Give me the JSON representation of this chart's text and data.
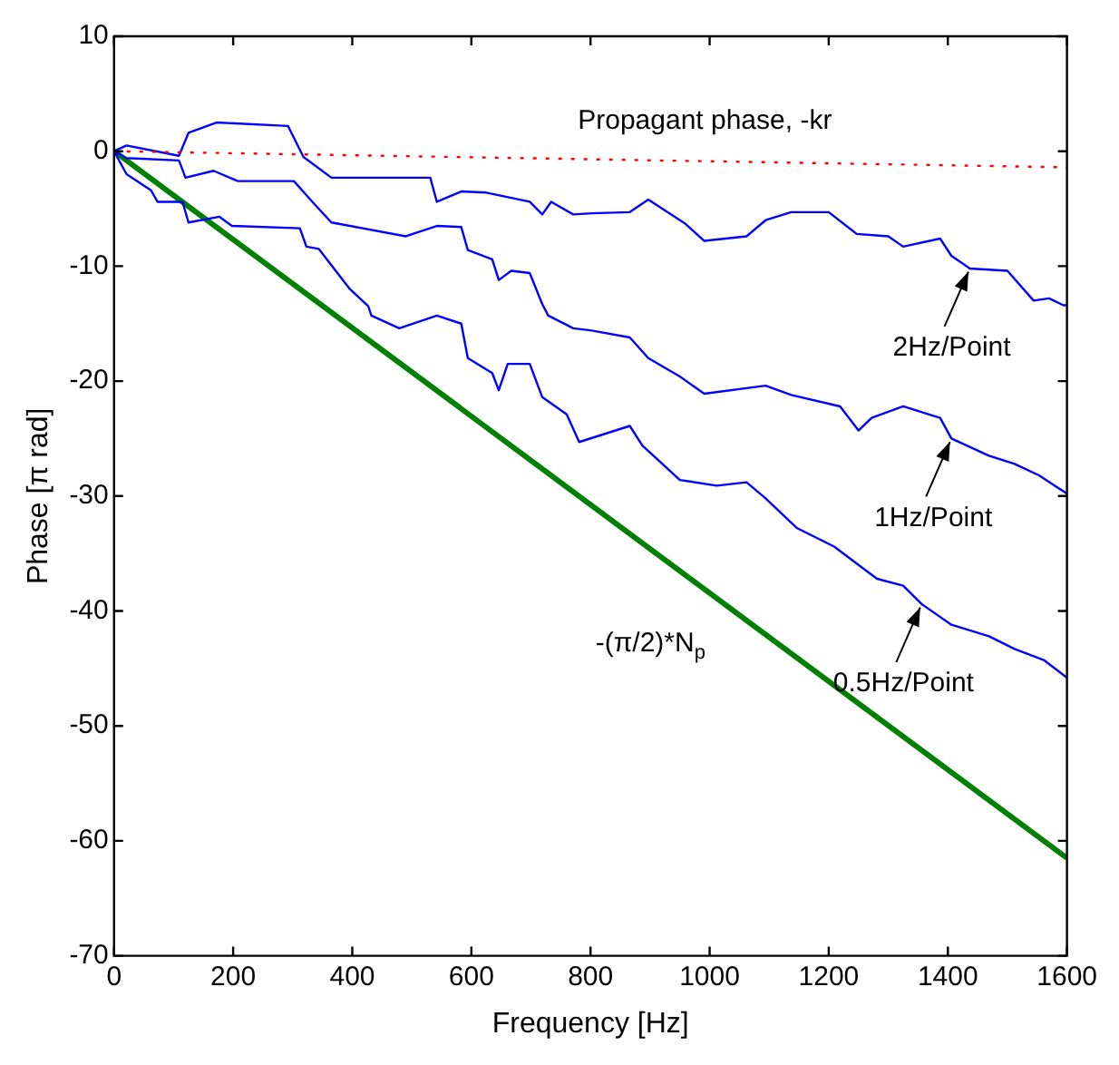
{
  "chart_data": {
    "type": "line",
    "xlabel": "Frequency [Hz]",
    "ylabel": "Phase [π rad]",
    "xlim": [
      0,
      1600
    ],
    "xticks": [
      0,
      200,
      400,
      600,
      800,
      1000,
      1200,
      1400,
      1600
    ],
    "ylim": [
      -70,
      10
    ],
    "yticks": [
      -70,
      -60,
      -50,
      -40,
      -30,
      -20,
      -10,
      0,
      10
    ],
    "grid": false,
    "legend": false,
    "marker": "none",
    "series": [
      {
        "name": "Propagant phase, -kr",
        "color": "#ff0000",
        "line_style": "dotted",
        "x": [
          0,
          1600
        ],
        "values": [
          0,
          -1.4
        ]
      },
      {
        "color": "#0000ff",
        "line_style": "solid",
        "x": [
          0,
          21,
          109,
          125,
          172,
          292,
          318,
          365,
          531,
          542,
          583,
          625,
          698,
          719,
          734,
          771,
          802,
          866,
          897,
          959,
          991,
          1062,
          1094,
          1137,
          1200,
          1247,
          1300,
          1325,
          1387,
          1406,
          1437,
          1500,
          1544,
          1570,
          1594,
          1600
        ],
        "values": [
          0,
          0.5,
          -0.4,
          1.6,
          2.5,
          2.2,
          -0.5,
          -2.3,
          -2.3,
          -4.4,
          -3.5,
          -3.6,
          -4.4,
          -5.5,
          -4.4,
          -5.5,
          -5.4,
          -5.3,
          -4.2,
          -6.3,
          -7.8,
          -7.4,
          -6.0,
          -5.3,
          -5.3,
          -7.2,
          -7.4,
          -8.3,
          -7.6,
          -9.1,
          -10.2,
          -10.4,
          -13.0,
          -12.8,
          -13.4,
          -13.4
        ]
      },
      {
        "color": "#0000ff",
        "line_style": "solid",
        "x": [
          0,
          21,
          109,
          120,
          167,
          208,
          302,
          333,
          365,
          490,
          542,
          583,
          594,
          635,
          646,
          667,
          698,
          719,
          729,
          771,
          802,
          866,
          897,
          950,
          991,
          1094,
          1137,
          1219,
          1250,
          1272,
          1325,
          1387,
          1406,
          1469,
          1512,
          1553,
          1600
        ],
        "values": [
          0,
          -0.6,
          -0.8,
          -2.3,
          -1.7,
          -2.6,
          -2.6,
          -4.4,
          -6.2,
          -7.4,
          -6.5,
          -6.6,
          -8.6,
          -9.4,
          -11.2,
          -10.4,
          -10.6,
          -13.3,
          -14.3,
          -15.4,
          -15.6,
          -16.2,
          -18.0,
          -19.6,
          -21.1,
          -20.4,
          -21.2,
          -22.2,
          -24.3,
          -23.2,
          -22.2,
          -23.2,
          -25.0,
          -26.5,
          -27.2,
          -28.2,
          -29.8
        ]
      },
      {
        "color": "#0000ff",
        "line_style": "solid",
        "x": [
          0,
          21,
          62,
          73,
          115,
          125,
          177,
          198,
          312,
          323,
          344,
          396,
          427,
          432,
          479,
          542,
          583,
          594,
          635,
          646,
          661,
          698,
          719,
          760,
          781,
          866,
          887,
          950,
          1012,
          1062,
          1094,
          1147,
          1209,
          1250,
          1281,
          1325,
          1356,
          1406,
          1469,
          1512,
          1562,
          1600
        ],
        "values": [
          0,
          -2.0,
          -3.4,
          -4.4,
          -4.4,
          -6.2,
          -5.7,
          -6.5,
          -6.7,
          -8.3,
          -8.5,
          -12.0,
          -13.5,
          -14.3,
          -15.4,
          -14.3,
          -15.0,
          -18.0,
          -19.3,
          -20.8,
          -18.5,
          -18.5,
          -21.4,
          -22.9,
          -25.3,
          -23.9,
          -25.6,
          -28.6,
          -29.1,
          -28.8,
          -30.2,
          -32.8,
          -34.4,
          -36.0,
          -37.2,
          -37.8,
          -39.4,
          -41.2,
          -42.2,
          -43.3,
          -44.3,
          -45.8
        ]
      },
      {
        "name": "-(π/2)*N$_{p}$",
        "color": "#008000",
        "line_style": "solid",
        "x": [
          0,
          1600
        ],
        "values": [
          0,
          -61.5
        ]
      }
    ],
    "annotations": [
      {
        "text": "2Hz/Point",
        "x": 1437,
        "y": -10.2
      },
      {
        "text": "1Hz/Point",
        "x": 1406,
        "y": -25.0
      },
      {
        "text": "0.5Hz/Point",
        "x": 1356,
        "y": -39.4
      }
    ]
  }
}
